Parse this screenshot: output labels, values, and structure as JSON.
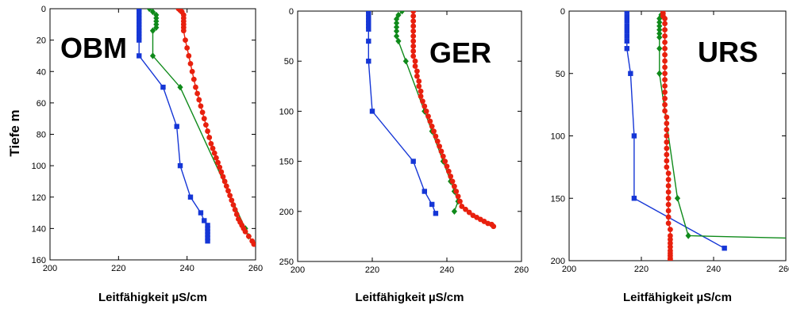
{
  "ylabel": "Tiefe  m",
  "series_colors": {
    "blue": "#1536d6",
    "green": "#0f8a1a",
    "red": "#e8200e"
  },
  "chart_data": [
    {
      "type": "line",
      "title": "OBM",
      "xlabel": "Leitfähigkeit  µS/cm",
      "xlim": [
        200,
        260
      ],
      "xticks": [
        200,
        220,
        240,
        260
      ],
      "ylim": [
        0,
        160
      ],
      "yticks": [
        0,
        20,
        40,
        60,
        80,
        100,
        120,
        140,
        160
      ],
      "y_inverted": true,
      "grid": false,
      "series": [
        {
          "color": "blue",
          "marker": "square",
          "x": [
            226,
            226,
            226,
            226,
            226,
            226,
            226,
            226,
            226,
            226,
            226,
            226,
            233,
            237,
            238,
            241,
            244,
            245,
            246,
            246,
            246,
            246,
            246,
            246
          ],
          "y": [
            0,
            2,
            4,
            6,
            8,
            10,
            12,
            14,
            16,
            18,
            20,
            30,
            50,
            75,
            100,
            120,
            130,
            135,
            138,
            140,
            142,
            144,
            146,
            148
          ]
        },
        {
          "color": "green",
          "marker": "diamond",
          "x": [
            229,
            230,
            231,
            231,
            231,
            231,
            231,
            230,
            230,
            238,
            257,
            258
          ],
          "y": [
            0,
            2,
            4,
            6,
            8,
            10,
            12,
            14,
            30,
            50,
            140,
            145
          ]
        },
        {
          "color": "red",
          "marker": "circle",
          "x": [
            237.5,
            238,
            238.5,
            239,
            239,
            239,
            239,
            239,
            239,
            239.5,
            240,
            240.5,
            241,
            241.5,
            242,
            242.5,
            243,
            243.5,
            244,
            244.5,
            245,
            245.5,
            246,
            246.5,
            247,
            247.5,
            248,
            248.5,
            249,
            249.5,
            250,
            250.5,
            251,
            251.5,
            252,
            252.5,
            253,
            253.5,
            254,
            254.5,
            255,
            255.5,
            256,
            256.5,
            257,
            258,
            259,
            259.5
          ],
          "y": [
            0,
            1,
            2,
            4,
            6,
            8,
            10,
            12,
            14,
            20,
            25,
            30,
            35,
            40,
            45,
            50,
            54,
            58,
            62,
            66,
            70,
            74,
            78,
            82,
            86,
            89,
            92,
            95,
            98,
            101,
            104,
            107,
            110,
            113,
            116,
            119,
            122,
            125,
            128,
            131,
            134,
            136,
            138,
            140,
            142,
            145,
            148,
            150
          ]
        }
      ]
    },
    {
      "type": "line",
      "title": "GER",
      "xlabel": "Leitfähigkeit  µS/cm",
      "xlim": [
        200,
        260
      ],
      "xticks": [
        200,
        220,
        240,
        260
      ],
      "ylim": [
        0,
        250
      ],
      "yticks": [
        0,
        50,
        100,
        150,
        200,
        250
      ],
      "y_inverted": true,
      "grid": false,
      "series": [
        {
          "color": "blue",
          "marker": "square",
          "x": [
            219,
            219,
            219,
            219,
            219,
            219,
            219,
            219,
            219,
            220,
            231,
            234,
            236,
            237
          ],
          "y": [
            0,
            3,
            6,
            9,
            12,
            15,
            18,
            30,
            50,
            100,
            150,
            180,
            193,
            202
          ]
        },
        {
          "color": "green",
          "marker": "diamond",
          "x": [
            228,
            227,
            226.5,
            226.5,
            226.5,
            226.5,
            226.5,
            227,
            229,
            234,
            236,
            239,
            241,
            242,
            243,
            242
          ],
          "y": [
            0,
            4,
            8,
            12,
            16,
            20,
            25,
            30,
            50,
            100,
            120,
            150,
            170,
            180,
            190,
            200
          ]
        },
        {
          "color": "red",
          "marker": "circle",
          "x": [
            231,
            231,
            231,
            231,
            231,
            231,
            231,
            231,
            231,
            231,
            231.5,
            231.5,
            232,
            232,
            232.5,
            232.5,
            233,
            233,
            233.5,
            234,
            234.5,
            235,
            235.5,
            236,
            236.5,
            237,
            237.5,
            238,
            238.5,
            239,
            239.5,
            240,
            240.5,
            241,
            241.5,
            242,
            242.5,
            243,
            243.5,
            244,
            245,
            246,
            247,
            248,
            249,
            250,
            251,
            252,
            252.5
          ],
          "y": [
            0,
            5,
            10,
            15,
            20,
            25,
            30,
            35,
            40,
            45,
            50,
            55,
            60,
            65,
            70,
            75,
            80,
            85,
            90,
            95,
            100,
            105,
            110,
            115,
            120,
            125,
            130,
            135,
            140,
            145,
            150,
            155,
            160,
            165,
            170,
            175,
            180,
            185,
            190,
            195,
            198,
            201,
            204,
            206,
            208,
            210,
            212,
            213,
            215
          ]
        }
      ]
    },
    {
      "type": "line",
      "title": "URS",
      "xlabel": "Leitfähigkeit  µS/cm",
      "xlim": [
        200,
        260
      ],
      "xticks": [
        200,
        220,
        240,
        260
      ],
      "ylim": [
        0,
        200
      ],
      "yticks": [
        0,
        50,
        100,
        150,
        200
      ],
      "y_inverted": true,
      "grid": false,
      "series": [
        {
          "color": "blue",
          "marker": "square",
          "x": [
            216,
            216,
            216,
            216,
            216,
            216,
            216,
            216,
            217,
            218,
            218,
            243
          ],
          "y": [
            0,
            4,
            8,
            12,
            16,
            20,
            24,
            30,
            50,
            100,
            150,
            190
          ]
        },
        {
          "color": "green",
          "marker": "diamond",
          "x": [
            226,
            225.5,
            225,
            225,
            225,
            225,
            225,
            225,
            225,
            225,
            230,
            233,
            262
          ],
          "y": [
            0,
            3,
            6,
            9,
            12,
            15,
            18,
            21,
            30,
            50,
            150,
            180,
            182
          ]
        },
        {
          "color": "red",
          "marker": "circle",
          "x": [
            226,
            226,
            226,
            226.5,
            226.5,
            226.5,
            226.5,
            226.5,
            226.5,
            226.5,
            226.5,
            226.5,
            226.5,
            226.5,
            226.5,
            226.5,
            226.5,
            226.5,
            226.5,
            227,
            227,
            227,
            227,
            227,
            227,
            227,
            227,
            227,
            227.5,
            227.5,
            227.5,
            227.5,
            227.5,
            227.5,
            227.5,
            227.5,
            227.5,
            228,
            228,
            228,
            228,
            228,
            228,
            228,
            228,
            228,
            228
          ],
          "y": [
            0,
            2,
            4,
            6,
            10,
            15,
            20,
            25,
            30,
            35,
            40,
            45,
            50,
            55,
            60,
            65,
            70,
            75,
            80,
            85,
            90,
            95,
            100,
            105,
            110,
            115,
            120,
            125,
            130,
            135,
            140,
            145,
            150,
            155,
            160,
            165,
            170,
            175,
            180,
            183,
            186,
            189,
            192,
            194,
            196,
            198,
            199
          ]
        }
      ]
    }
  ]
}
